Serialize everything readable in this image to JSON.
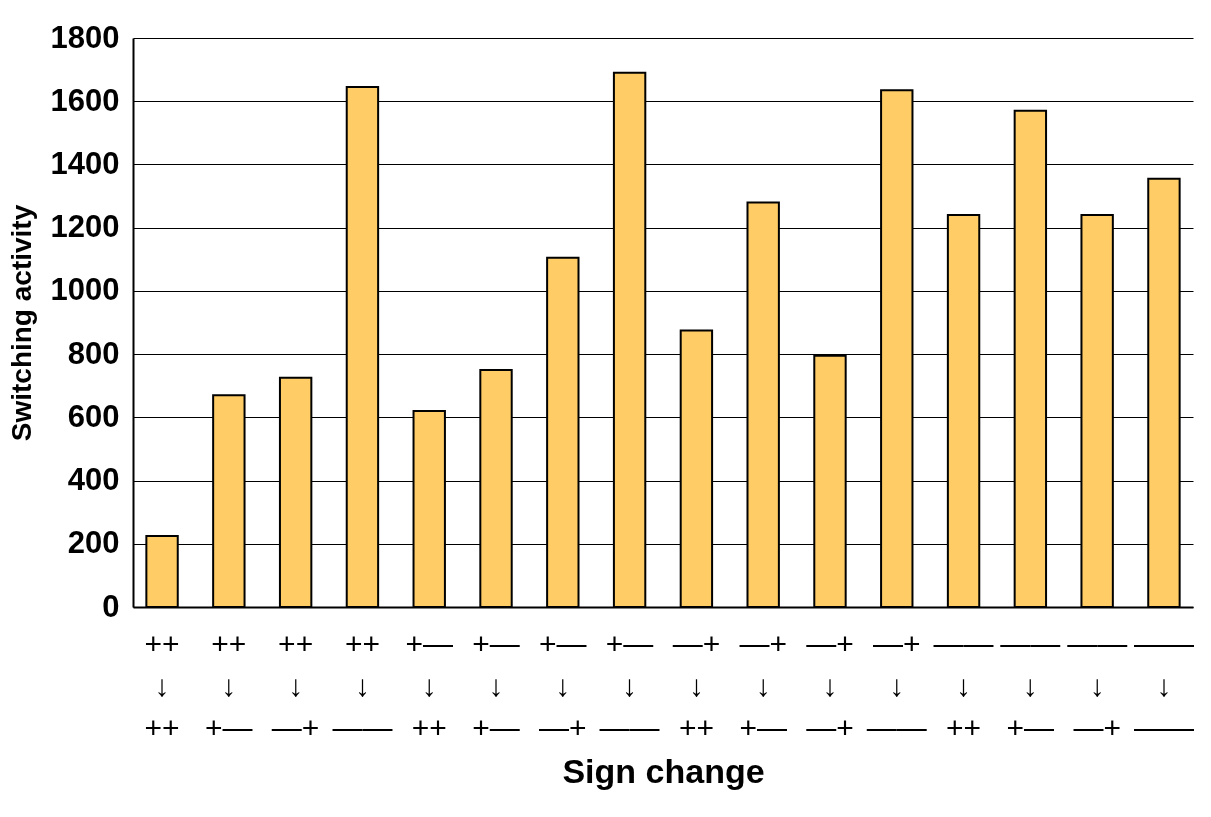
{
  "chart_data": {
    "type": "bar",
    "xlabel": "Sign change",
    "ylabel": "Switching activity",
    "categories": [
      "++\n↓\n++",
      "++\n↓\n+—",
      "++\n↓\n—+",
      "++\n↓\n——",
      "+—\n↓\n++",
      "+—\n↓\n+—",
      "+—\n↓\n—+",
      "+—\n↓\n——",
      "—+\n↓\n++",
      "—+\n↓\n+—",
      "—+\n↓\n—+",
      "—+\n↓\n——",
      "——\n↓\n++",
      "——\n↓\n+—",
      "——\n↓\n—+",
      "——\n↓\n——"
    ],
    "values": [
      225,
      670,
      725,
      1645,
      620,
      750,
      1105,
      1690,
      875,
      1280,
      795,
      1635,
      1240,
      1570,
      1240,
      1355
    ],
    "color": "#ffcc66",
    "ylim": [
      0,
      1800
    ],
    "yticks": [
      0,
      200,
      400,
      600,
      800,
      1000,
      1200,
      1400,
      1600,
      1800
    ],
    "grid": "y"
  }
}
